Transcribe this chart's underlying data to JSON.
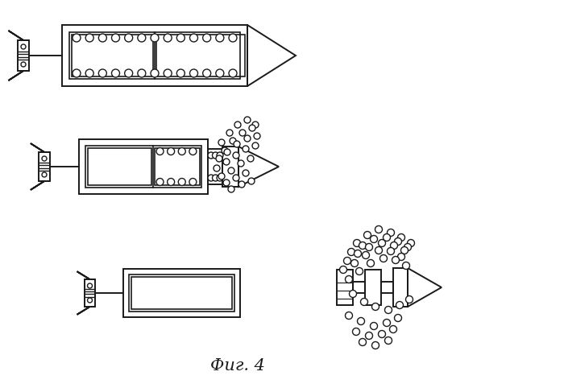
{
  "title": "Фиг. 4",
  "bg_color": "#ffffff",
  "line_color": "#1a1a1a",
  "lw": 1.4,
  "fig_width": 7.0,
  "fig_height": 4.82
}
